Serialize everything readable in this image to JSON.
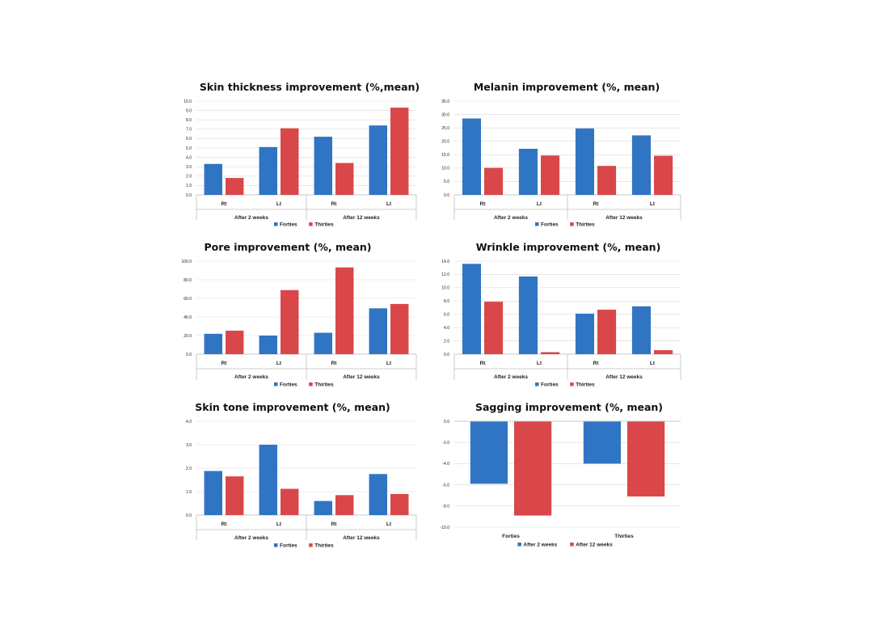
{
  "colors": {
    "blue": "#2f75c4",
    "red": "#d9474a"
  },
  "chart_data": [
    {
      "type": "bar",
      "title": "Skin thickness improvement (%,mean)",
      "categories": [
        "Rt",
        "Lt",
        "Rt",
        "Lt"
      ],
      "groups": [
        "After 2 weeks",
        "After 12 weeks"
      ],
      "series": [
        {
          "name": "Forties",
          "values": [
            3.3,
            5.1,
            6.2,
            7.4
          ]
        },
        {
          "name": "Thirties",
          "values": [
            1.8,
            7.1,
            3.4,
            9.3
          ]
        }
      ],
      "ylim": [
        0,
        10
      ],
      "yticks": [
        "0.0",
        "1.0",
        "2.0",
        "3.0",
        "4.0",
        "5.0",
        "6.0",
        "7.0",
        "8.0",
        "9.0",
        "10.0"
      ],
      "legend": "bottom"
    },
    {
      "type": "bar",
      "title": "Melanin improvement (%, mean)",
      "categories": [
        "Rt",
        "Lt",
        "Rt",
        "Lt"
      ],
      "groups": [
        "After 2 weeks",
        "After 12 weeks"
      ],
      "series": [
        {
          "name": "Forties",
          "values": [
            28.5,
            17.2,
            24.8,
            22.2
          ]
        },
        {
          "name": "Thirties",
          "values": [
            10.1,
            14.7,
            10.8,
            14.6
          ]
        }
      ],
      "ylim": [
        0,
        35
      ],
      "yticks": [
        "0.0",
        "5.0",
        "10.0",
        "15.0",
        "20.0",
        "25.0",
        "30.0",
        "35.0"
      ],
      "legend": "bottom"
    },
    {
      "type": "bar",
      "title": "Pore improvement (%, mean)",
      "categories": [
        "Rt",
        "Lt",
        "Rt",
        "Lt"
      ],
      "groups": [
        "After 2 weeks",
        "After 12 weeks"
      ],
      "series": [
        {
          "name": "Forties",
          "values": [
            21.9,
            20.0,
            23.0,
            49.3
          ]
        },
        {
          "name": "Thirties",
          "values": [
            25.3,
            68.9,
            93.3,
            54.0
          ]
        }
      ],
      "ylim": [
        0,
        100
      ],
      "yticks": [
        "0.0",
        "20.0",
        "40.0",
        "60.0",
        "80.0",
        "100.0"
      ],
      "legend": "bottom"
    },
    {
      "type": "bar",
      "title": "Wrinkle improvement (%, mean)",
      "categories": [
        "Rt",
        "Lt",
        "Rt",
        "Lt"
      ],
      "groups": [
        "After 2 weeks",
        "After 12 weeks"
      ],
      "series": [
        {
          "name": "Forties",
          "values": [
            13.6,
            11.7,
            6.1,
            7.2
          ]
        },
        {
          "name": "Thirties",
          "values": [
            7.9,
            0.3,
            6.7,
            0.6
          ]
        }
      ],
      "ylim": [
        0,
        14
      ],
      "yticks": [
        "0.0",
        "2.0",
        "4.0",
        "6.0",
        "8.0",
        "10.0",
        "12.0",
        "14.0"
      ],
      "legend": "bottom"
    },
    {
      "type": "bar",
      "title": "Skin tone improvement (%, mean)",
      "categories": [
        "Rt",
        "Lt",
        "Rt",
        "Lt"
      ],
      "groups": [
        "After 2 weeks",
        "After 12 weeks"
      ],
      "series": [
        {
          "name": "Forties",
          "values": [
            1.88,
            3.0,
            0.6,
            1.75
          ]
        },
        {
          "name": "Thirties",
          "values": [
            1.65,
            1.12,
            0.85,
            0.9
          ]
        }
      ],
      "ylim": [
        0,
        4
      ],
      "yticks": [
        "0.0",
        "1.0",
        "2.0",
        "3.0",
        "4.0"
      ],
      "legend": "bottom"
    },
    {
      "type": "bar",
      "title": "Sagging improvement (%, mean)",
      "categories": [
        "Forties",
        "Thirties"
      ],
      "groups": [],
      "series": [
        {
          "name": "After 2 weeks",
          "values": [
            -5.9,
            -4.0
          ]
        },
        {
          "name": "After 12 weeks",
          "values": [
            -8.9,
            -7.1
          ]
        }
      ],
      "ylim": [
        -10,
        0
      ],
      "yticks": [
        "0.0",
        "-2.0",
        "-4.0",
        "-6.0",
        "-8.0",
        "-10.0"
      ],
      "legend": "bottom"
    }
  ]
}
